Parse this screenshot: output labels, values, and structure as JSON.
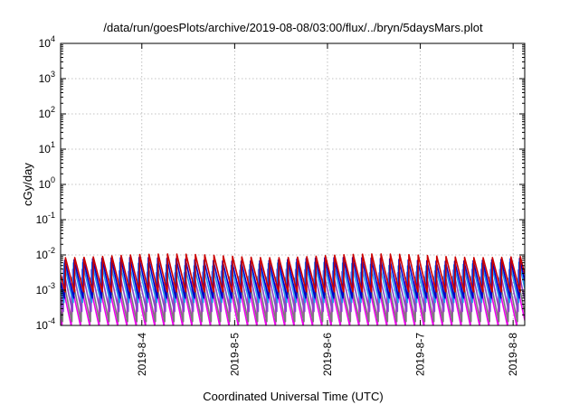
{
  "chart_data": {
    "type": "line",
    "title": "/data/run/goesPlots/archive/2019-08-08/03:00/flux/../bryn/5daysMars.plot",
    "xlabel": "Coordinated Universal Time (UTC)",
    "ylabel": "cGy/day",
    "yscale": "log",
    "ylim": [
      0.0001,
      10000
    ],
    "xlim": [
      "2019-08-03 03:00",
      "2019-08-08 03:00"
    ],
    "grid": true,
    "y_ticks": [
      {
        "value": 0.0001,
        "base": "10",
        "exp": "-4"
      },
      {
        "value": 0.001,
        "base": "10",
        "exp": "-3"
      },
      {
        "value": 0.01,
        "base": "10",
        "exp": "-2"
      },
      {
        "value": 0.1,
        "base": "10",
        "exp": "-1"
      },
      {
        "value": 1,
        "base": "10",
        "exp": "0"
      },
      {
        "value": 10,
        "base": "10",
        "exp": "1"
      },
      {
        "value": 100,
        "base": "10",
        "exp": "2"
      },
      {
        "value": 1000,
        "base": "10",
        "exp": "3"
      },
      {
        "value": 10000,
        "base": "10",
        "exp": "4"
      }
    ],
    "x_ticks": [
      {
        "label": "2019-8-4",
        "value": "2019-08-04 00:00"
      },
      {
        "label": "2019-8-5",
        "value": "2019-08-05 00:00"
      },
      {
        "label": "2019-8-6",
        "value": "2019-08-06 00:00"
      },
      {
        "label": "2019-8-7",
        "value": "2019-08-07 00:00"
      },
      {
        "label": "2019-8-8",
        "value": "2019-08-08 00:00"
      }
    ],
    "pattern": {
      "description": "sawtooth dose-rate curves",
      "cycle_hours": 2.4,
      "phase_offset_hours": 1.2
    },
    "series": [
      {
        "color": "#cc0000",
        "peak": 0.0095,
        "trough": 0.0009
      },
      {
        "color": "#0000cc",
        "peak": 0.0075,
        "trough": 0.0006
      },
      {
        "color": "#2299ee",
        "peak": 0.0055,
        "trough": 0.00045
      },
      {
        "color": "#8844cc",
        "peak": 0.0035,
        "trough": 0.00025
      },
      {
        "color": "#7a7a7a",
        "peak": 0.0022,
        "trough": 0.00013
      },
      {
        "color": "#ee00ee",
        "peak": 0.0016,
        "trough": 0.0001
      }
    ]
  }
}
